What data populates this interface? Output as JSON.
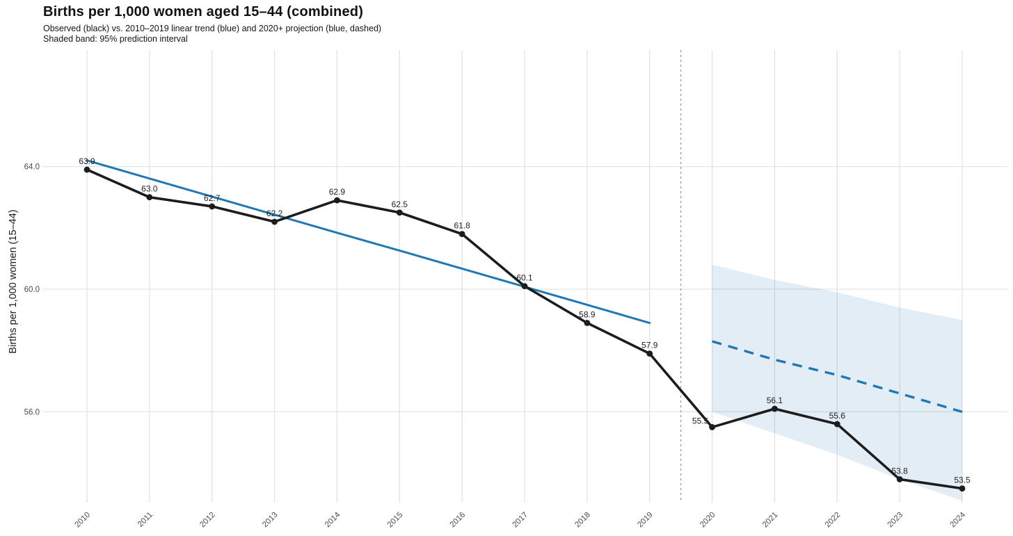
{
  "title": "Births per 1,000 women aged 15–44 (combined)",
  "subtitle_line1": "Observed (black) vs. 2010–2019 linear trend (blue) and 2020+ projection (blue, dashed)",
  "subtitle_line2": "Shaded band: 95% prediction interval",
  "y_axis_title": "Births per 1,000 women (15–44)",
  "colors": {
    "observed_line": "#1c1c1c",
    "trend_blue": "#1f77b4",
    "band_fill": "rgba(31,119,180,0.13)",
    "gridline": "#e3e3e3",
    "divider": "#8a8a8a",
    "tick_label": "#4d4d4d",
    "data_label": "#1f1f1f",
    "background": "#ffffff"
  },
  "chart_data": {
    "type": "line",
    "title": "Births per 1,000 women aged 15–44 (combined)",
    "xlabel": "",
    "ylabel": "Births per 1,000 women (15–44)",
    "x": [
      2010,
      2011,
      2012,
      2013,
      2014,
      2015,
      2016,
      2017,
      2018,
      2019,
      2020,
      2021,
      2022,
      2023,
      2024
    ],
    "x_tick_labels": [
      "2010",
      "2011",
      "2012",
      "2013",
      "2014",
      "2015",
      "2016",
      "2017",
      "2018",
      "2019",
      "2020",
      "2021",
      "2022",
      "2023",
      "2024"
    ],
    "y_ticks": [
      56.0,
      60.0,
      64.0
    ],
    "y_tick_labels": [
      "56.0",
      "60.0",
      "64.0"
    ],
    "ylim": [
      52.9,
      67.8
    ],
    "grid": "major-only",
    "legend_position": "none",
    "divider_x": 2019.5,
    "series": [
      {
        "name": "Observed",
        "style": "solid",
        "color": "#1c1c1c",
        "markers": true,
        "data_labels": true,
        "x": [
          2010,
          2011,
          2012,
          2013,
          2014,
          2015,
          2016,
          2017,
          2018,
          2019,
          2020,
          2021,
          2022,
          2023,
          2024
        ],
        "values": [
          63.9,
          63.0,
          62.7,
          62.2,
          62.9,
          62.5,
          61.8,
          60.1,
          58.9,
          57.9,
          55.5,
          56.1,
          55.6,
          53.8,
          53.5
        ]
      },
      {
        "name": "2010–2019 linear trend",
        "style": "solid",
        "color": "#1f77b4",
        "markers": false,
        "data_labels": false,
        "x": [
          2010,
          2011,
          2012,
          2013,
          2014,
          2015,
          2016,
          2017,
          2018,
          2019
        ],
        "values": [
          64.2,
          63.61,
          63.02,
          62.43,
          61.84,
          61.26,
          60.67,
          60.08,
          59.49,
          58.9
        ]
      },
      {
        "name": "2020+ projection",
        "style": "dashed",
        "color": "#1f77b4",
        "markers": false,
        "data_labels": false,
        "x": [
          2020,
          2021,
          2022,
          2023,
          2024
        ],
        "values": [
          58.3,
          57.7,
          57.2,
          56.6,
          56.0
        ]
      }
    ],
    "band": {
      "name": "95% prediction interval",
      "x": [
        2020,
        2021,
        2022,
        2023,
        2024
      ],
      "upper": [
        60.8,
        60.3,
        59.9,
        59.4,
        59.0
      ],
      "lower": [
        56.0,
        55.3,
        54.6,
        53.8,
        53.1
      ]
    }
  }
}
